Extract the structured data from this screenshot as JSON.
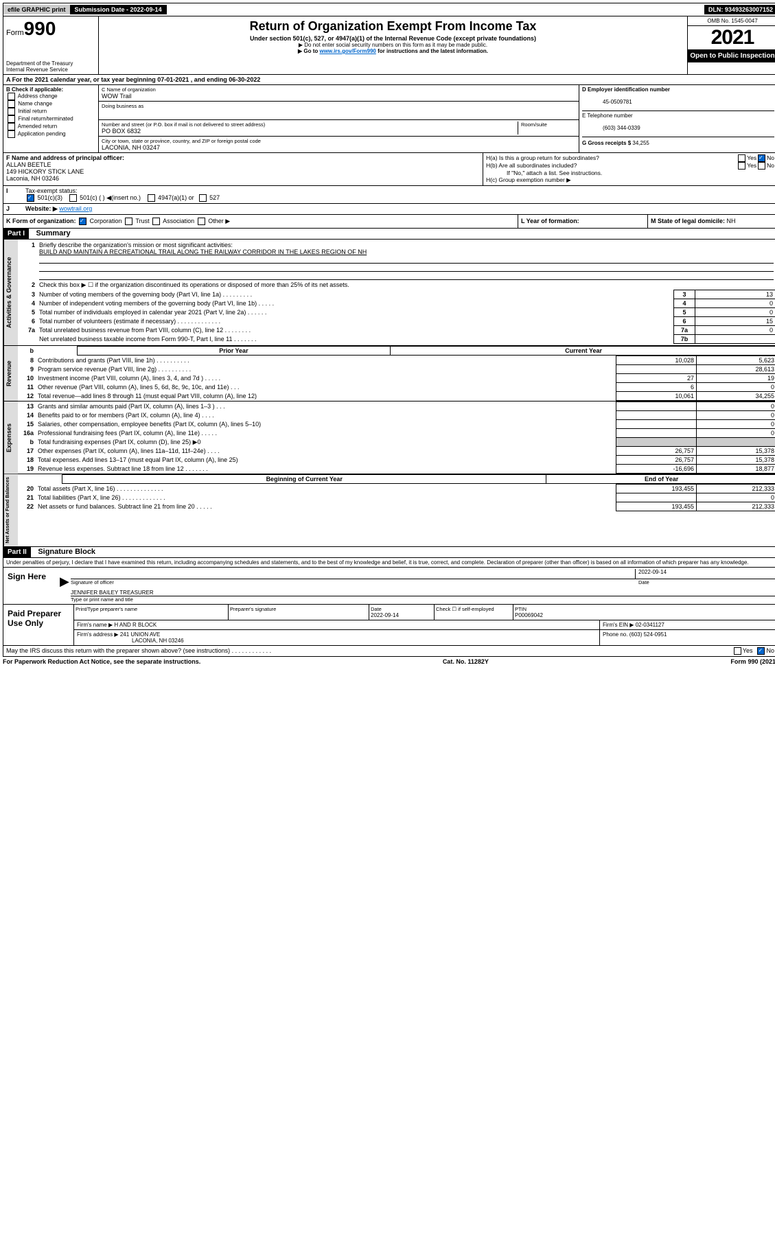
{
  "topbar": {
    "efile": "efile GRAPHIC print",
    "submission_label": "Submission Date - ",
    "submission_date": "2022-09-14",
    "dln_label": "DLN: ",
    "dln": "93493263007152"
  },
  "header": {
    "form_prefix": "Form",
    "form_number": "990",
    "dept": "Department of the Treasury",
    "irs": "Internal Revenue Service",
    "title": "Return of Organization Exempt From Income Tax",
    "subtitle": "Under section 501(c), 527, or 4947(a)(1) of the Internal Revenue Code (except private foundations)",
    "note1": "▶ Do not enter social security numbers on this form as it may be made public.",
    "note2_pre": "▶ Go to ",
    "note2_link": "www.irs.gov/Form990",
    "note2_post": " for instructions and the latest information.",
    "omb": "OMB No. 1545-0047",
    "year": "2021",
    "public": "Open to Public Inspection"
  },
  "a": {
    "tax_year": "For the 2021 calendar year, or tax year beginning 07-01-2021   , and ending 06-30-2022"
  },
  "b": {
    "label": "B Check if applicable:",
    "opts": [
      "Address change",
      "Name change",
      "Initial return",
      "Final return/terminated",
      "Amended return",
      "Application pending"
    ]
  },
  "c": {
    "name_label": "C Name of organization",
    "name": "WOW Trail",
    "dba_label": "Doing business as",
    "dba": "",
    "addr_label": "Number and street (or P.O. box if mail is not delivered to street address)",
    "room_label": "Room/suite",
    "addr": "PO BOX 6832",
    "city_label": "City or town, state or province, country, and ZIP or foreign postal code",
    "city": "LACONIA, NH  03247"
  },
  "d": {
    "label": "D Employer identification number",
    "val": "45-0509781"
  },
  "e": {
    "label": "E Telephone number",
    "val": "(603) 344-0339"
  },
  "g": {
    "label": "G Gross receipts $ ",
    "val": "34,255"
  },
  "f": {
    "label": "F  Name and address of principal officer:",
    "name": "ALLAN BEETLE",
    "addr1": "149 HICKORY STICK LANE",
    "addr2": "Laconia, NH  03246"
  },
  "h": {
    "a_label": "H(a)  Is this a group return for subordinates?",
    "b_label": "H(b)  Are all subordinates included?",
    "b_note": "If \"No,\" attach a list. See instructions.",
    "c_label": "H(c)  Group exemption number ▶"
  },
  "i": {
    "label": "Tax-exempt status:",
    "opts": [
      "501(c)(3)",
      "501(c) (  ) ◀(insert no.)",
      "4947(a)(1) or",
      "527"
    ]
  },
  "j": {
    "label": "Website: ▶",
    "val": "wowtrail.org"
  },
  "k": {
    "label": "K Form of organization:",
    "opts": [
      "Corporation",
      "Trust",
      "Association",
      "Other ▶"
    ]
  },
  "l": {
    "label": "L Year of formation:",
    "val": ""
  },
  "m": {
    "label": "M State of legal domicile: ",
    "val": "NH"
  },
  "part1": {
    "header": "Part I",
    "title": "Summary",
    "q1_label": "Briefly describe the organization's mission or most significant activities:",
    "q1_val": "BUILD AND MAINTAIN A RECREATIONAL TRAIL ALONG THE RAILWAY CORRIDOR IN THE LAKES REGION OF NH",
    "q2": "Check this box ▶ ☐  if the organization discontinued its operations or disposed of more than 25% of its net assets.",
    "rows_gov": [
      {
        "n": "3",
        "txt": "Number of voting members of the governing body (Part VI, line 1a)  .   .   .   .   .   .   .   .   .",
        "box": "3",
        "val": "13"
      },
      {
        "n": "4",
        "txt": "Number of independent voting members of the governing body (Part VI, line 1b)  .   .   .   .   .",
        "box": "4",
        "val": "0"
      },
      {
        "n": "5",
        "txt": "Total number of individuals employed in calendar year 2021 (Part V, line 2a)  .   .   .   .   .   .",
        "box": "5",
        "val": "0"
      },
      {
        "n": "6",
        "txt": "Total number of volunteers (estimate if necessary)  .   .   .   .   .   .   .   .   .   .   .   .   .",
        "box": "6",
        "val": "15"
      },
      {
        "n": "7a",
        "txt": "Total unrelated business revenue from Part VIII, column (C), line 12  .   .   .   .   .   .   .   .",
        "box": "7a",
        "val": "0"
      },
      {
        "n": "",
        "txt": "Net unrelated business taxable income from Form 990-T, Part I, line 11  .   .   .   .   .   .   .",
        "box": "7b",
        "val": ""
      }
    ],
    "col_hdrs": {
      "b": "b",
      "prior": "Prior Year",
      "current": "Current Year"
    },
    "rows_rev": [
      {
        "n": "8",
        "txt": "Contributions and grants (Part VIII, line 1h)  .   .   .   .   .   .   .   .   .   .",
        "p": "10,028",
        "c": "5,623"
      },
      {
        "n": "9",
        "txt": "Program service revenue (Part VIII, line 2g)  .   .   .   .   .   .   .   .   .   .",
        "p": "",
        "c": "28,613"
      },
      {
        "n": "10",
        "txt": "Investment income (Part VIII, column (A), lines 3, 4, and 7d )  .   .   .   .   .",
        "p": "27",
        "c": "19"
      },
      {
        "n": "11",
        "txt": "Other revenue (Part VIII, column (A), lines 5, 6d, 8c, 9c, 10c, and 11e) .   .   .",
        "p": "6",
        "c": "0"
      },
      {
        "n": "12",
        "txt": "Total revenue—add lines 8 through 11 (must equal Part VIII, column (A), line 12)",
        "p": "10,061",
        "c": "34,255"
      }
    ],
    "rows_exp": [
      {
        "n": "13",
        "txt": "Grants and similar amounts paid (Part IX, column (A), lines 1–3 )  .   .   .",
        "p": "",
        "c": "0"
      },
      {
        "n": "14",
        "txt": "Benefits paid to or for members (Part IX, column (A), line 4)  .   .   .   .",
        "p": "",
        "c": "0"
      },
      {
        "n": "15",
        "txt": "Salaries, other compensation, employee benefits (Part IX, column (A), lines 5–10)",
        "p": "",
        "c": "0"
      },
      {
        "n": "16a",
        "txt": "Professional fundraising fees (Part IX, column (A), line 11e)  .   .   .   .   .",
        "p": "",
        "c": "0"
      },
      {
        "n": "b",
        "txt": "Total fundraising expenses (Part IX, column (D), line 25) ▶0",
        "p": "",
        "c": "",
        "shaded": true
      },
      {
        "n": "17",
        "txt": "Other expenses (Part IX, column (A), lines 11a–11d, 11f–24e)  .   .   .   .",
        "p": "26,757",
        "c": "15,378"
      },
      {
        "n": "18",
        "txt": "Total expenses. Add lines 13–17 (must equal Part IX, column (A), line 25)",
        "p": "26,757",
        "c": "15,378"
      },
      {
        "n": "19",
        "txt": "Revenue less expenses. Subtract line 18 from line 12  .   .   .   .   .   .   .",
        "p": "-16,696",
        "c": "18,877"
      }
    ],
    "col_hdrs2": {
      "begin": "Beginning of Current Year",
      "end": "End of Year"
    },
    "rows_net": [
      {
        "n": "20",
        "txt": "Total assets (Part X, line 16)  .   .   .   .   .   .   .   .   .   .   .   .   .   .",
        "p": "193,455",
        "c": "212,333"
      },
      {
        "n": "21",
        "txt": "Total liabilities (Part X, line 26)  .   .   .   .   .   .   .   .   .   .   .   .   .",
        "p": "",
        "c": "0"
      },
      {
        "n": "22",
        "txt": "Net assets or fund balances. Subtract line 21 from line 20  .   .   .   .   .",
        "p": "193,455",
        "c": "212,333"
      }
    ],
    "tabs": {
      "gov": "Activities & Governance",
      "rev": "Revenue",
      "exp": "Expenses",
      "net": "Net Assets or Fund Balances"
    }
  },
  "part2": {
    "header": "Part II",
    "title": "Signature Block",
    "perjury": "Under penalties of perjury, I declare that I have examined this return, including accompanying schedules and statements, and to the best of my knowledge and belief, it is true, correct, and complete. Declaration of preparer (other than officer) is based on all information of which preparer has any knowledge.",
    "sign_here": "Sign Here",
    "sig_officer": "Signature of officer",
    "sig_date_label": "Date",
    "sig_date": "2022-09-14",
    "sig_name": "JENNIFER BAILEY TREASURER",
    "sig_name_label": "Type or print name and title",
    "paid": "Paid Preparer Use Only",
    "prep_name_label": "Print/Type preparer's name",
    "prep_sig_label": "Preparer's signature",
    "prep_date_label": "Date",
    "prep_date": "2022-09-14",
    "prep_check_label": "Check ☐ if self-employed",
    "ptin_label": "PTIN",
    "ptin": "P00069042",
    "firm_name_label": "Firm's name    ▶ ",
    "firm_name": "H AND R BLOCK",
    "firm_ein_label": "Firm's EIN ▶ ",
    "firm_ein": "02-0341127",
    "firm_addr_label": "Firm's address ▶ ",
    "firm_addr1": "241 UNION AVE",
    "firm_addr2": "LACONIA, NH  03246",
    "firm_phone_label": "Phone no. ",
    "firm_phone": "(603) 524-0951",
    "may_irs": "May the IRS discuss this return with the preparer shown above? (see instructions)  .   .   .   .   .   .   .   .   .   .   .   ."
  },
  "footer": {
    "paperwork": "For Paperwork Reduction Act Notice, see the separate instructions.",
    "cat": "Cat. No. 11282Y",
    "form": "Form 990 (2021)"
  }
}
